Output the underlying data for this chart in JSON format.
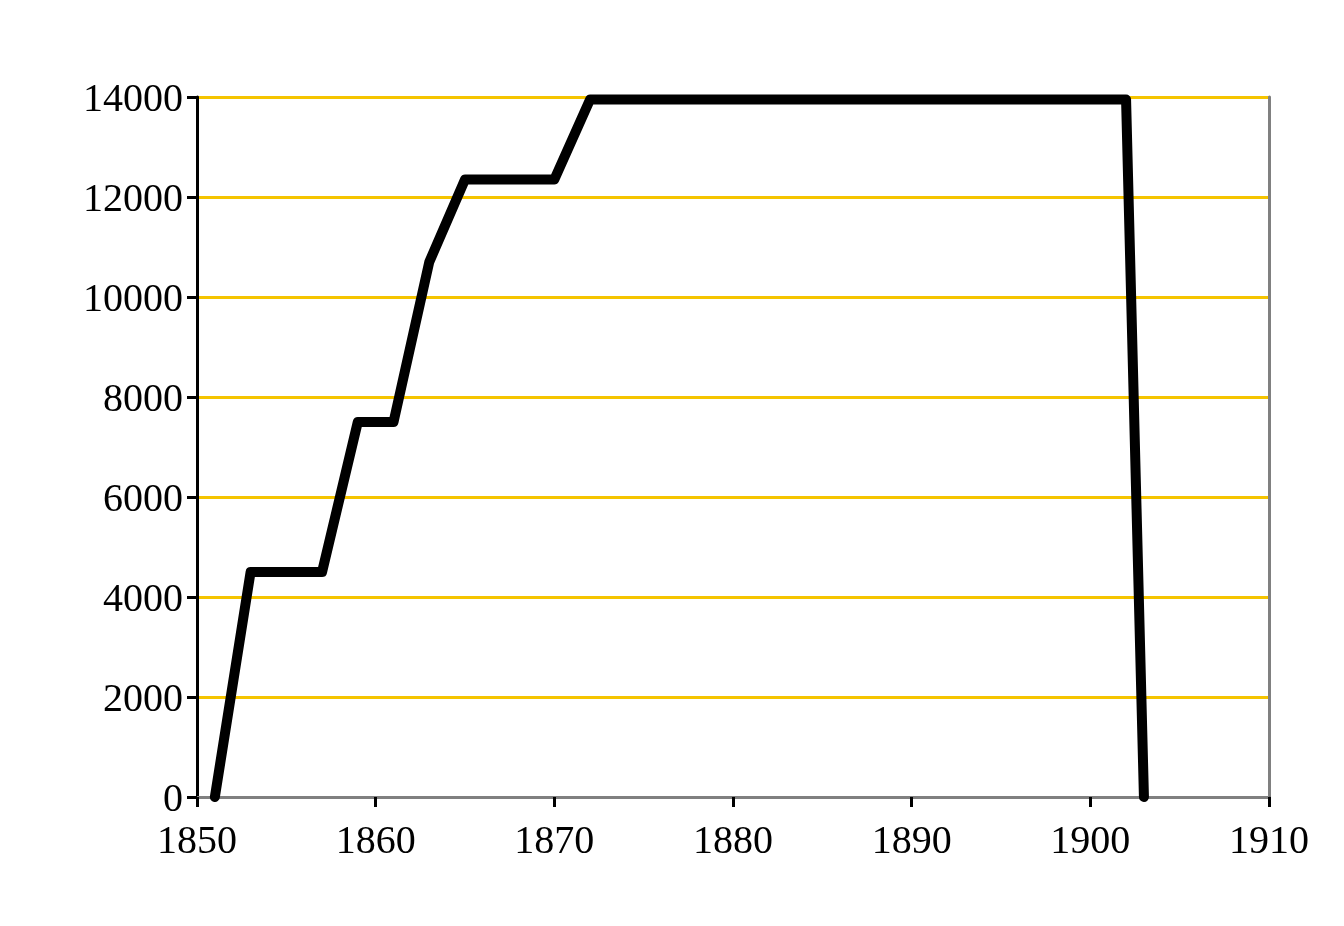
{
  "chart_data": {
    "type": "line",
    "x": [
      1851,
      1853,
      1857,
      1859,
      1861,
      1863,
      1865,
      1870,
      1872,
      1902,
      1903
    ],
    "series": [
      {
        "color": "#000000",
        "values": [
          0,
          4500,
          4500,
          7500,
          7500,
          10700,
          12350,
          12350,
          13950,
          13950,
          0
        ]
      }
    ],
    "xlim": [
      1850,
      1910
    ],
    "xticks": [
      1850,
      1860,
      1870,
      1880,
      1890,
      1900,
      1910
    ],
    "ylim": [
      0,
      14000
    ],
    "yticks": [
      0,
      2000,
      4000,
      6000,
      8000,
      10000,
      12000,
      14000
    ],
    "grid": "y",
    "line_style": "solid"
  }
}
